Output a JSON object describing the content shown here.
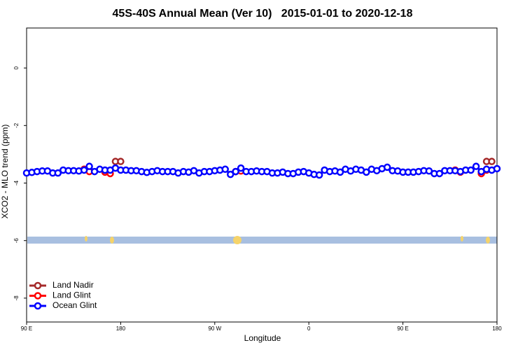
{
  "chart_data": {
    "type": "line",
    "title": "45S-40S Annual Mean (Ver 10)   2015-01-01 to 2020-12-18",
    "x_label": "Longitude",
    "y_label": "XCO2 - MLO trend (ppm)",
    "xlim": [
      90,
      540
    ],
    "ylim": [
      -8.83,
      1.39
    ],
    "xticks": [
      {
        "value": 90,
        "label": "90 E"
      },
      180,
      {
        "value": 270,
        "label": "90 W"
      },
      {
        "value": 360,
        "label": "0"
      },
      {
        "value": 450,
        "label": "90 E"
      },
      {
        "value": 540,
        "label": "180"
      }
    ],
    "yticks": [
      0,
      -2,
      -4,
      -6,
      -8
    ],
    "legend": "bottom-left",
    "series": [
      {
        "name": "Land Nadir",
        "color": "#a52a2a",
        "x": [
          175,
          180,
          290,
          530,
          535
        ],
        "values": [
          -3.25,
          -3.25,
          -3.6,
          -3.25,
          -3.25
        ]
      },
      {
        "name": "Land Glint",
        "color": "#ff0000",
        "x": [
          145,
          150,
          165,
          170,
          290,
          295,
          500,
          505,
          525,
          530
        ],
        "values": [
          -3.52,
          -3.6,
          -3.62,
          -3.67,
          -3.6,
          -3.58,
          -3.55,
          -3.62,
          -3.67,
          -3.55
        ]
      },
      {
        "name": "Ocean Glint",
        "color": "#0000ff",
        "x": [
          90,
          95,
          100,
          105,
          110,
          115,
          120,
          125,
          130,
          135,
          140,
          145,
          150,
          155,
          160,
          165,
          170,
          175,
          180,
          185,
          190,
          195,
          200,
          205,
          210,
          215,
          220,
          225,
          230,
          235,
          240,
          245,
          250,
          255,
          260,
          265,
          270,
          275,
          280,
          285,
          290,
          295,
          300,
          305,
          310,
          315,
          320,
          325,
          330,
          335,
          340,
          345,
          350,
          355,
          360,
          365,
          370,
          375,
          380,
          385,
          390,
          395,
          400,
          405,
          410,
          415,
          420,
          425,
          430,
          435,
          440,
          445,
          450,
          455,
          460,
          465,
          470,
          475,
          480,
          485,
          490,
          495,
          500,
          505,
          510,
          515,
          520,
          525,
          530,
          535,
          540
        ],
        "values": [
          -3.65,
          -3.63,
          -3.6,
          -3.58,
          -3.58,
          -3.65,
          -3.65,
          -3.55,
          -3.57,
          -3.57,
          -3.58,
          -3.55,
          -3.42,
          -3.6,
          -3.52,
          -3.55,
          -3.55,
          -3.48,
          -3.55,
          -3.55,
          -3.57,
          -3.57,
          -3.6,
          -3.63,
          -3.6,
          -3.57,
          -3.6,
          -3.6,
          -3.6,
          -3.65,
          -3.6,
          -3.62,
          -3.57,
          -3.65,
          -3.6,
          -3.6,
          -3.57,
          -3.55,
          -3.52,
          -3.7,
          -3.6,
          -3.48,
          -3.6,
          -3.6,
          -3.58,
          -3.6,
          -3.6,
          -3.65,
          -3.65,
          -3.62,
          -3.67,
          -3.67,
          -3.62,
          -3.6,
          -3.65,
          -3.7,
          -3.72,
          -3.55,
          -3.6,
          -3.58,
          -3.62,
          -3.52,
          -3.58,
          -3.52,
          -3.55,
          -3.62,
          -3.52,
          -3.57,
          -3.5,
          -3.45,
          -3.57,
          -3.58,
          -3.62,
          -3.62,
          -3.62,
          -3.6,
          -3.57,
          -3.58,
          -3.67,
          -3.67,
          -3.57,
          -3.57,
          -3.57,
          -3.6,
          -3.55,
          -3.55,
          -3.42,
          -3.6,
          -3.52,
          -3.55,
          -3.5
        ]
      }
    ]
  }
}
